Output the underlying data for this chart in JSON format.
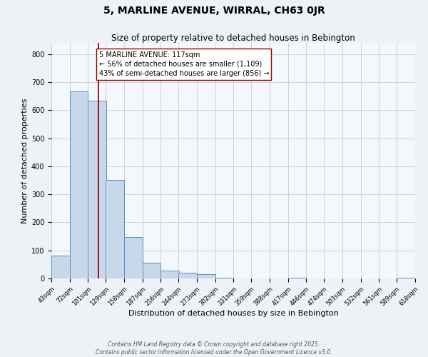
{
  "title": "5, MARLINE AVENUE, WIRRAL, CH63 0JR",
  "subtitle": "Size of property relative to detached houses in Bebington",
  "xlabel": "Distribution of detached houses by size in Bebington",
  "ylabel": "Number of detached properties",
  "bar_left_edges": [
    43,
    72,
    101,
    129,
    158,
    187,
    216,
    244,
    273,
    302,
    331,
    359,
    388,
    417,
    446,
    474,
    503,
    532,
    561,
    589
  ],
  "bar_heights": [
    82,
    668,
    635,
    352,
    148,
    57,
    27,
    20,
    15,
    2,
    0,
    0,
    0,
    2,
    0,
    0,
    0,
    0,
    0,
    2
  ],
  "bin_width": 29,
  "bar_color": "#c8d8eb",
  "bar_edge_color": "#5a8fbf",
  "vline_x": 117,
  "vline_color": "#990000",
  "annotation_text": "5 MARLINE AVENUE: 117sqm\n← 56% of detached houses are smaller (1,109)\n43% of semi-detached houses are larger (856) →",
  "annotation_box_color": "#ffffff",
  "annotation_box_edge_color": "#990000",
  "ylim": [
    0,
    840
  ],
  "yticks": [
    0,
    100,
    200,
    300,
    400,
    500,
    600,
    700,
    800
  ],
  "tick_labels": [
    "43sqm",
    "72sqm",
    "101sqm",
    "129sqm",
    "158sqm",
    "187sqm",
    "216sqm",
    "244sqm",
    "273sqm",
    "302sqm",
    "331sqm",
    "359sqm",
    "388sqm",
    "417sqm",
    "446sqm",
    "474sqm",
    "503sqm",
    "532sqm",
    "561sqm",
    "589sqm",
    "618sqm"
  ],
  "footnote1": "Contains HM Land Registry data © Crown copyright and database right 2025.",
  "footnote2": "Contains public sector information licensed under the Open Government Licence v3.0.",
  "bg_color": "#eef2f7",
  "plot_bg_color": "#f4f7fb",
  "grid_color": "#c5cdd8",
  "title_fontsize": 10,
  "subtitle_fontsize": 8.5,
  "xlabel_fontsize": 8,
  "ylabel_fontsize": 8,
  "annot_fontsize": 7,
  "tick_fontsize": 6,
  "footnote_fontsize": 5.5
}
